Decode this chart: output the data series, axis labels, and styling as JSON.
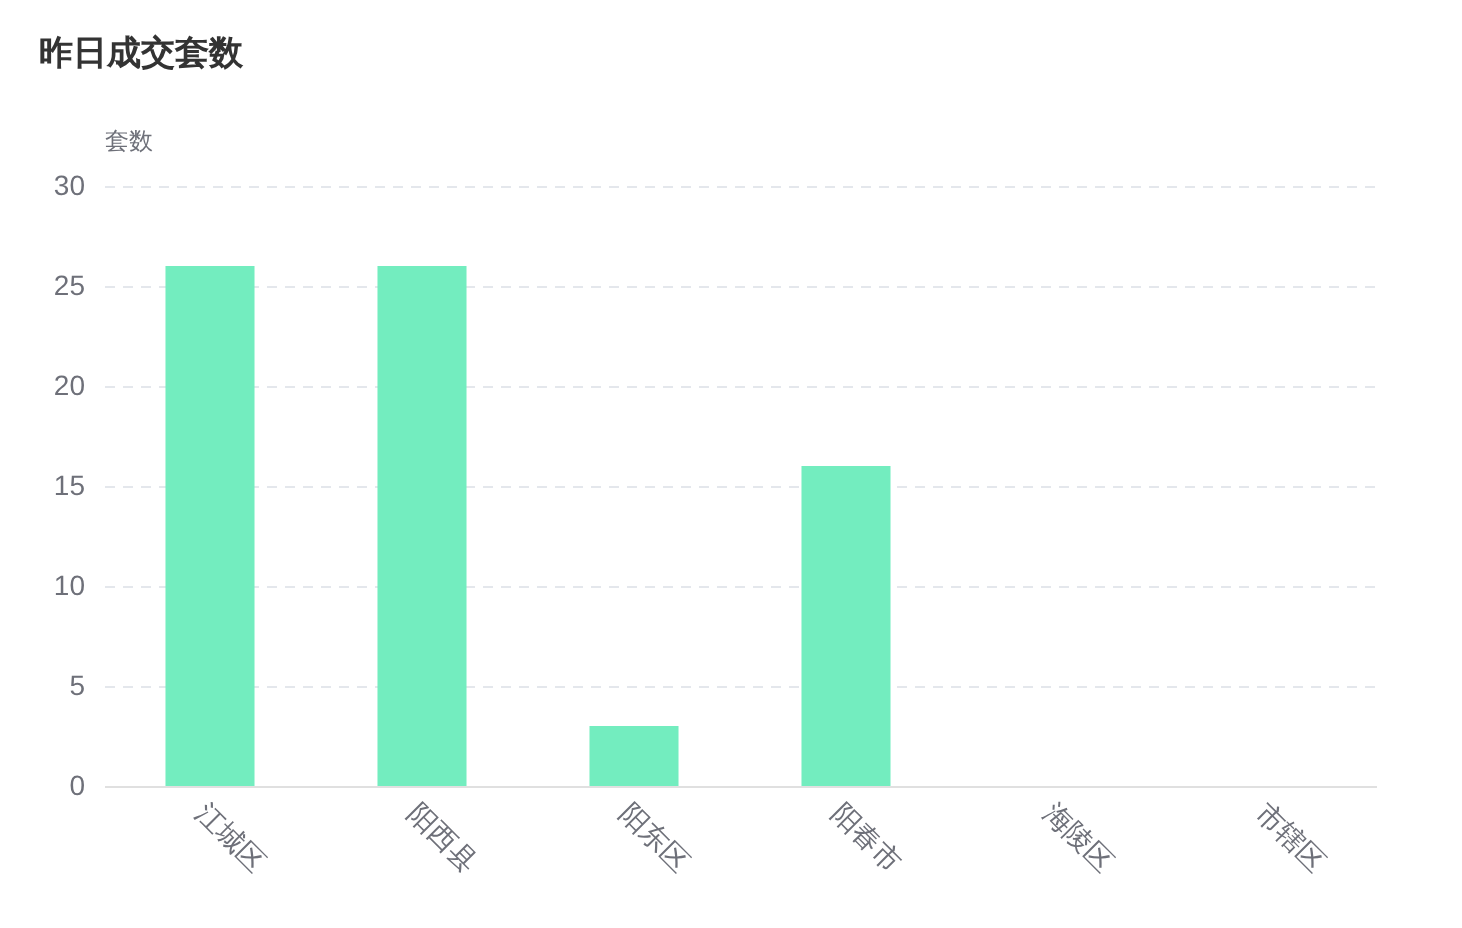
{
  "chart_data": {
    "type": "bar",
    "title": "昨日成交套数",
    "ylabel": "套数",
    "categories": [
      "江城区",
      "阳西县",
      "阳东区",
      "阳春市",
      "海陵区",
      "市辖区"
    ],
    "values": [
      26,
      26,
      3,
      16,
      0,
      0
    ],
    "color": "#73edbf",
    "ylim": [
      0,
      30
    ],
    "yticks": [
      0,
      5,
      10,
      15,
      20,
      25,
      30
    ],
    "grid": "y"
  }
}
